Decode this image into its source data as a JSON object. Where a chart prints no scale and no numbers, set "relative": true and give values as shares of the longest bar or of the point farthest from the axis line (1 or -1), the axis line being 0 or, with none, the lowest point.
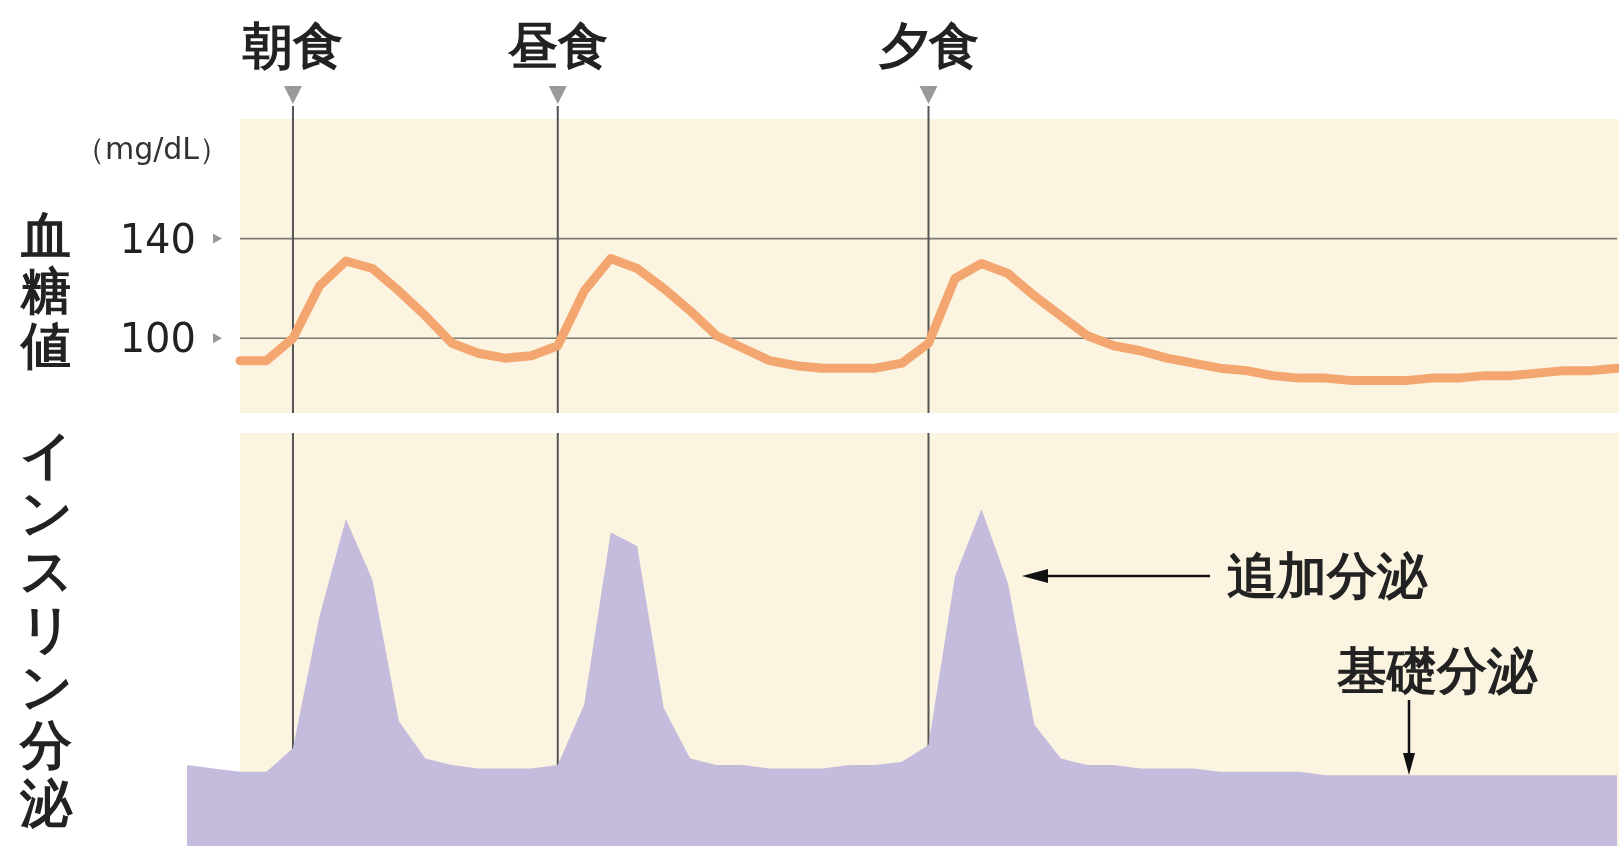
{
  "chart_data": [
    {
      "type": "line",
      "ylabel": "血糖値",
      "annotations": [
        "（mg/dL）"
      ],
      "categories": [
        null,
        null,
        "朝食",
        null,
        null,
        null,
        null,
        null,
        null,
        null,
        null,
        null,
        "昼食",
        null,
        null,
        null,
        null,
        null,
        null,
        null,
        null,
        null,
        null,
        null,
        null,
        null,
        "夕食",
        null,
        null,
        null,
        null,
        null,
        null,
        null,
        null,
        null,
        null,
        null,
        null,
        null,
        null,
        null,
        null,
        null,
        null,
        null,
        null,
        null,
        null,
        null,
        null,
        null,
        null
      ],
      "values": [
        91,
        91,
        100,
        121,
        131,
        128,
        119,
        109,
        98,
        94,
        92,
        93,
        97,
        119,
        132,
        128,
        120,
        111,
        101,
        96,
        91,
        89,
        88,
        88,
        88,
        90,
        98,
        124,
        130,
        126,
        117,
        109,
        101,
        97,
        95,
        92,
        90,
        88,
        87,
        85,
        84,
        84,
        83,
        83,
        83,
        84,
        84,
        85,
        85,
        86,
        87,
        87,
        88
      ],
      "color": "#f3a66f",
      "line_style": "solid",
      "ylim": [
        70,
        188
      ],
      "yticks": [
        100,
        140
      ],
      "grid": true
    },
    {
      "type": "area",
      "ylabel": "インスリン分泌",
      "relative": true,
      "categories": [
        null,
        null,
        null,
        null,
        null,
        null,
        null,
        null,
        null,
        null,
        null,
        null,
        null,
        null,
        null,
        null,
        null,
        null,
        null,
        null,
        null,
        null,
        null,
        null,
        null,
        null,
        null,
        null,
        null,
        null,
        null,
        null,
        null,
        null,
        null,
        null,
        null,
        null,
        null,
        null,
        null,
        null,
        null,
        null,
        null,
        null,
        null,
        null,
        null,
        null,
        null,
        null,
        null,
        null,
        null
      ],
      "values": [
        0.24,
        0.23,
        0.22,
        0.22,
        0.29,
        0.68,
        0.97,
        0.79,
        0.37,
        0.26,
        0.24,
        0.23,
        0.23,
        0.23,
        0.24,
        0.42,
        0.93,
        0.89,
        0.41,
        0.26,
        0.24,
        0.24,
        0.23,
        0.23,
        0.23,
        0.24,
        0.24,
        0.25,
        0.3,
        0.8,
        1,
        0.78,
        0.36,
        0.26,
        0.24,
        0.24,
        0.23,
        0.23,
        0.23,
        0.22,
        0.22,
        0.22,
        0.22,
        0.21,
        0.21,
        0.21,
        0.21,
        0.21,
        0.21,
        0.21,
        0.21,
        0.21,
        0.21,
        0.21,
        0.21
      ],
      "color": "#c4bbdd",
      "grid": "x",
      "annotations": [
        "追加分泌",
        "基礎分泌"
      ]
    }
  ]
}
